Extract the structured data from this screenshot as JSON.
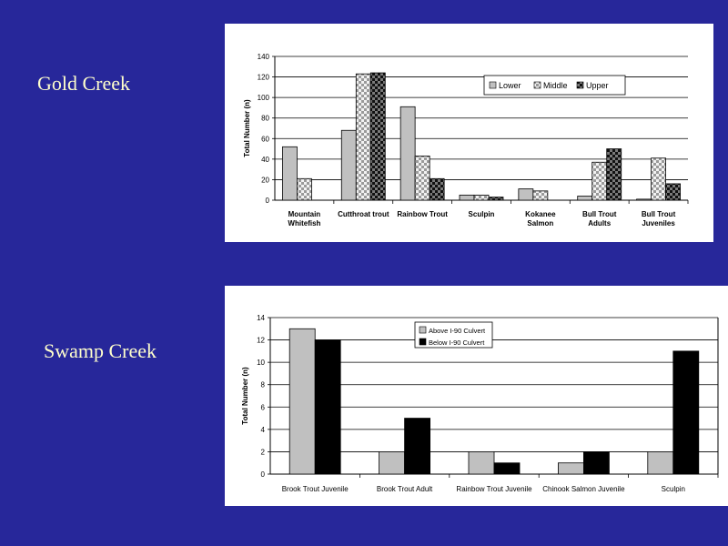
{
  "slide": {
    "background": "#27279a",
    "label_color": "#ffffcc",
    "gold_title": "Gold Creek",
    "swamp_title": "Swamp Creek"
  },
  "chart_data": [
    {
      "type": "bar",
      "title": "",
      "xlabel": "",
      "ylabel": "Total Number (n)",
      "ylim": [
        0,
        140
      ],
      "yticks": [
        0,
        20,
        40,
        60,
        80,
        100,
        120,
        140
      ],
      "grid": true,
      "legend": "top-right",
      "categories": [
        [
          "Mountain",
          "Whitefish"
        ],
        [
          "Cutthroat trout"
        ],
        [
          "Rainbow Trout"
        ],
        [
          "Sculpin"
        ],
        [
          "Kokanee",
          "Salmon"
        ],
        [
          "Bull Trout",
          "Adults"
        ],
        [
          "Bull Trout",
          "Juveniles"
        ]
      ],
      "series": [
        {
          "name": "Lower",
          "pattern": "light-gray",
          "values": [
            52,
            68,
            91,
            5,
            11,
            4,
            1
          ]
        },
        {
          "name": "Middle",
          "pattern": "light-checker",
          "values": [
            21,
            123,
            43,
            5,
            9,
            37,
            41
          ]
        },
        {
          "name": "Upper",
          "pattern": "dark-checker",
          "values": [
            0,
            124,
            21,
            3,
            0,
            50,
            16
          ]
        }
      ]
    },
    {
      "type": "bar",
      "title": "",
      "xlabel": "",
      "ylabel": "Total Number (n)",
      "ylim": [
        0,
        14
      ],
      "yticks": [
        0,
        2,
        4,
        6,
        8,
        10,
        12,
        14
      ],
      "grid": true,
      "legend": "top-center",
      "categories": [
        [
          "Brook Trout Juvenile"
        ],
        [
          "Brook Trout Adult"
        ],
        [
          "Rainbow Trout Juvenile"
        ],
        [
          "Chinook Salmon Juvenile"
        ],
        [
          "Sculpin"
        ]
      ],
      "series": [
        {
          "name": "Above I-90 Culvert",
          "color": "#c0c0c0",
          "values": [
            13,
            2,
            2,
            1,
            2
          ]
        },
        {
          "name": "Below I-90 Culvert",
          "color": "#000000",
          "values": [
            12,
            5,
            1,
            2,
            11
          ]
        }
      ]
    }
  ]
}
